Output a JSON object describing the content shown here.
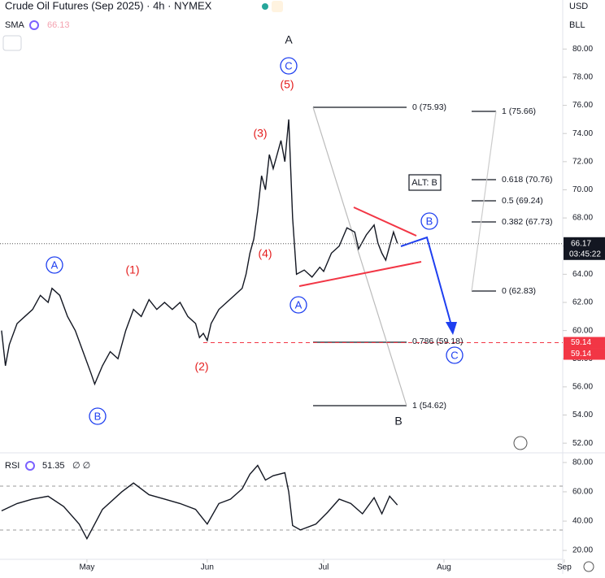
{
  "header": {
    "title": "Crude Oil Futures (Sep 2025) · 4h · NYMEX",
    "indicator": "SMA",
    "indicator_value": "66.13",
    "currency": "USD",
    "unit": "BLL"
  },
  "chart_data": {
    "type": "line",
    "x": [
      99,
      100,
      101,
      103,
      105,
      107,
      109,
      111,
      112,
      114,
      116,
      118,
      120,
      122,
      123,
      125,
      127,
      129,
      131,
      133,
      135,
      137,
      139,
      141,
      143,
      145,
      147,
      149,
      150,
      151,
      152,
      153,
      155,
      157,
      159,
      161,
      162,
      163,
      164,
      165,
      166,
      167,
      168,
      169,
      170,
      171,
      172,
      173,
      174,
      175,
      177,
      179,
      181,
      182,
      184,
      186,
      188,
      190,
      191,
      193,
      195,
      196,
      197,
      198,
      199,
      200,
      201
    ],
    "series": [
      {
        "name": "Crude Oil Futures",
        "color": "#131722",
        "values": [
          60.0,
          57.5,
          59.0,
          60.5,
          61.0,
          61.5,
          62.5,
          62.0,
          63.0,
          62.5,
          61.0,
          60.0,
          58.5,
          57.0,
          56.2,
          57.5,
          58.5,
          58.0,
          60.0,
          61.5,
          61.0,
          62.2,
          61.5,
          62.0,
          61.5,
          62.0,
          61.0,
          60.5,
          59.5,
          59.8,
          59.3,
          60.5,
          61.5,
          62.0,
          62.5,
          63.0,
          64.0,
          65.5,
          66.5,
          68.5,
          71.0,
          70.0,
          72.5,
          71.5,
          72.5,
          73.5,
          72.0,
          75.0,
          68.0,
          64.0,
          64.3,
          63.8,
          64.5,
          64.2,
          65.5,
          66.0,
          67.3,
          67.0,
          65.8,
          66.8,
          67.5,
          66.2,
          65.5,
          65.0,
          66.0,
          67.0,
          66.2
        ]
      }
    ],
    "xlim": [
      98.6,
      243.6
    ],
    "xticks": [
      {
        "value": 121,
        "label": "May"
      },
      {
        "value": 152,
        "label": "Jun"
      },
      {
        "value": 182,
        "label": "Jul"
      },
      {
        "value": 213,
        "label": "Aug"
      },
      {
        "value": 244,
        "label": "Sep"
      }
    ],
    "ylim": [
      51.2,
      81.0
    ],
    "yticks": [
      {
        "value": 52,
        "label": "52.00"
      },
      {
        "value": 54,
        "label": "54.00"
      },
      {
        "value": 56,
        "label": "56.00"
      },
      {
        "value": 58,
        "label": "58.00"
      },
      {
        "value": 60,
        "label": "60.00"
      },
      {
        "value": 62,
        "label": "62.00"
      },
      {
        "value": 64,
        "label": "64.00"
      },
      {
        "value": 66,
        "label": "66.00"
      },
      {
        "value": 68,
        "label": "68.00"
      },
      {
        "value": 70,
        "label": "70.00"
      },
      {
        "value": 72,
        "label": "72.00"
      },
      {
        "value": 74,
        "label": "74.00"
      },
      {
        "value": 76,
        "label": "76.00"
      },
      {
        "value": 78,
        "label": "78.00"
      },
      {
        "value": 80,
        "label": "80.00"
      }
    ],
    "last_price": 66.17,
    "countdown": "03:45:22",
    "target_line": 59.14,
    "target_tags": [
      59.14,
      59.14
    ],
    "wave_labels": [
      "(5)",
      "(3)",
      "(4)",
      "(1)",
      "(2)"
    ],
    "circled_labels": [
      "C",
      "A",
      "B",
      "A",
      "B",
      "C"
    ],
    "plain_labels": [
      "A",
      "B"
    ],
    "fib_labels": [
      "0 (75.93)",
      "1 (75.66)",
      "0.618 (70.76)",
      "0.5 (69.24)",
      "0.382 (67.73)",
      "0 (62.83)",
      "0.786 (59.18)",
      "1 (54.62)"
    ],
    "note": "ALT: B"
  },
  "rsi_chart": {
    "type": "line",
    "title": "RSI",
    "value_label": "51.35",
    "flags": "∅ ∅",
    "x": [
      99,
      103,
      107,
      111,
      115,
      119,
      121,
      125,
      130,
      133,
      137,
      141,
      145,
      149,
      152,
      155,
      158,
      161,
      163,
      165,
      167,
      169,
      172,
      173,
      174,
      176,
      180,
      183,
      186,
      189,
      192,
      195,
      197,
      199,
      201
    ],
    "series": [
      {
        "name": "RSI",
        "color": "#131722",
        "values": [
          47,
          52,
          55,
          57,
          50,
          38,
          28,
          48,
          60,
          66,
          58,
          55,
          52,
          48,
          38,
          52,
          55,
          62,
          72,
          78,
          68,
          71,
          73,
          60,
          37,
          34,
          38,
          46,
          55,
          52,
          45,
          56,
          45,
          57,
          51
        ]
      }
    ],
    "ylim": [
      14.5,
      85.5
    ],
    "yticks": [
      {
        "value": 20,
        "label": "20.00"
      },
      {
        "value": 40,
        "label": "40.00"
      },
      {
        "value": 60,
        "label": "60.00"
      },
      {
        "value": 80,
        "label": "80.00"
      }
    ]
  }
}
